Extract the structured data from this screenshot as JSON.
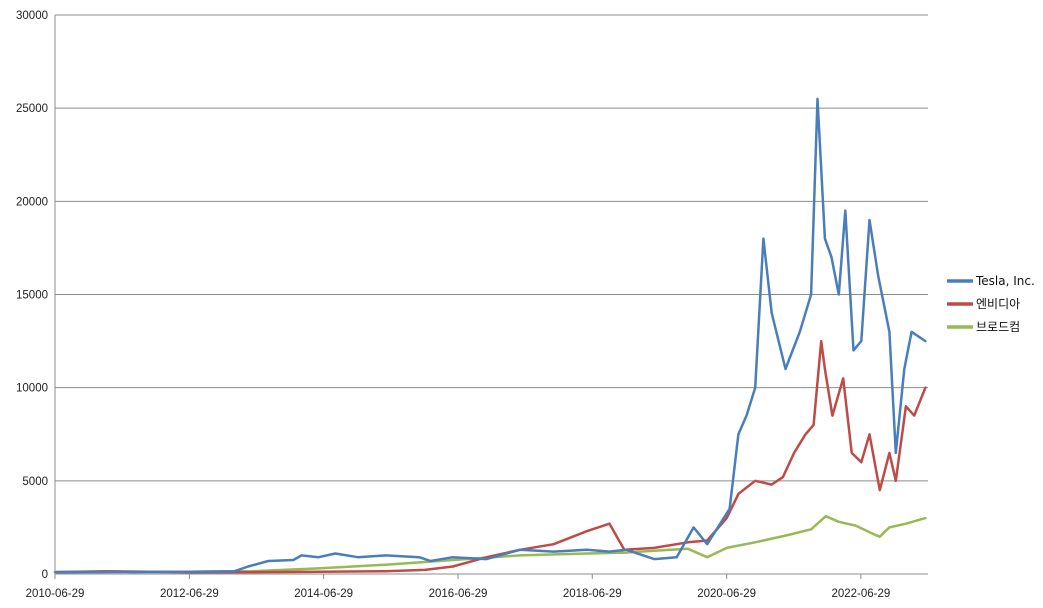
{
  "chart_data": {
    "type": "line",
    "title": "",
    "xlabel": "",
    "ylabel": "",
    "ylim": [
      0,
      30000
    ],
    "y_ticks": [
      0,
      5000,
      10000,
      15000,
      20000,
      25000,
      30000
    ],
    "xlim": [
      "2010-06-29",
      "2023-06-29"
    ],
    "x_ticks": [
      "2010-06-29",
      "2012-06-29",
      "2014-06-29",
      "2016-06-29",
      "2018-06-29",
      "2020-06-29",
      "2022-06-29"
    ],
    "grid": "horizontal",
    "legend_position": "right",
    "series": [
      {
        "name": "Tesla, Inc.",
        "color": "#4a7ebb",
        "points": [
          [
            "2010-06-29",
            100
          ],
          [
            "2012-06-29",
            120
          ],
          [
            "2013-03-01",
            150
          ],
          [
            "2013-05-15",
            400
          ],
          [
            "2013-09-01",
            700
          ],
          [
            "2014-01-15",
            750
          ],
          [
            "2014-03-01",
            1000
          ],
          [
            "2014-06-01",
            900
          ],
          [
            "2014-09-01",
            1100
          ],
          [
            "2015-01-01",
            900
          ],
          [
            "2015-06-01",
            1000
          ],
          [
            "2015-12-01",
            900
          ],
          [
            "2016-02-01",
            700
          ],
          [
            "2016-06-01",
            900
          ],
          [
            "2016-12-01",
            800
          ],
          [
            "2017-06-01",
            1300
          ],
          [
            "2017-12-01",
            1200
          ],
          [
            "2018-06-01",
            1300
          ],
          [
            "2018-10-01",
            1200
          ],
          [
            "2019-01-01",
            1300
          ],
          [
            "2019-06-01",
            800
          ],
          [
            "2019-10-01",
            900
          ],
          [
            "2020-01-01",
            2500
          ],
          [
            "2020-03-15",
            1600
          ],
          [
            "2020-07-15",
            3500
          ],
          [
            "2020-09-01",
            7500
          ],
          [
            "2020-10-15",
            8500
          ],
          [
            "2020-12-01",
            10000
          ],
          [
            "2021-01-15",
            18000
          ],
          [
            "2021-03-01",
            14000
          ],
          [
            "2021-05-15",
            11000
          ],
          [
            "2021-08-01",
            13000
          ],
          [
            "2021-10-01",
            15000
          ],
          [
            "2021-11-05",
            25500
          ],
          [
            "2021-12-15",
            18000
          ],
          [
            "2022-01-20",
            17000
          ],
          [
            "2022-03-01",
            15000
          ],
          [
            "2022-04-05",
            19500
          ],
          [
            "2022-05-20",
            12000
          ],
          [
            "2022-07-01",
            12500
          ],
          [
            "2022-08-15",
            19000
          ],
          [
            "2022-10-01",
            16000
          ],
          [
            "2022-12-01",
            13000
          ],
          [
            "2023-01-05",
            6500
          ],
          [
            "2023-02-20",
            11000
          ],
          [
            "2023-04-01",
            13000
          ],
          [
            "2023-06-15",
            12500
          ]
        ]
      },
      {
        "name": "엔비디아",
        "color": "#be4b48",
        "points": [
          [
            "2010-06-29",
            100
          ],
          [
            "2011-04-01",
            150
          ],
          [
            "2012-06-29",
            90
          ],
          [
            "2013-06-01",
            100
          ],
          [
            "2014-06-01",
            120
          ],
          [
            "2015-06-01",
            150
          ],
          [
            "2016-01-01",
            220
          ],
          [
            "2016-06-01",
            400
          ],
          [
            "2016-12-01",
            900
          ],
          [
            "2017-06-01",
            1300
          ],
          [
            "2017-12-01",
            1600
          ],
          [
            "2018-06-01",
            2300
          ],
          [
            "2018-10-01",
            2700
          ],
          [
            "2018-12-20",
            1300
          ],
          [
            "2019-06-01",
            1400
          ],
          [
            "2019-12-01",
            1700
          ],
          [
            "2020-03-15",
            1800
          ],
          [
            "2020-06-29",
            3000
          ],
          [
            "2020-09-01",
            4300
          ],
          [
            "2020-12-01",
            5000
          ],
          [
            "2021-03-01",
            4800
          ],
          [
            "2021-05-01",
            5200
          ],
          [
            "2021-07-01",
            6500
          ],
          [
            "2021-09-01",
            7500
          ],
          [
            "2021-10-15",
            8000
          ],
          [
            "2021-11-25",
            12500
          ],
          [
            "2021-12-15",
            11000
          ],
          [
            "2022-01-25",
            8500
          ],
          [
            "2022-03-25",
            10500
          ],
          [
            "2022-05-10",
            6500
          ],
          [
            "2022-07-01",
            6000
          ],
          [
            "2022-08-15",
            7500
          ],
          [
            "2022-10-10",
            4500
          ],
          [
            "2022-12-01",
            6500
          ],
          [
            "2023-01-05",
            5000
          ],
          [
            "2023-03-01",
            9000
          ],
          [
            "2023-04-15",
            8500
          ],
          [
            "2023-06-15",
            10000
          ]
        ]
      },
      {
        "name": "브로드컴",
        "color": "#98b954",
        "points": [
          [
            "2010-06-29",
            100
          ],
          [
            "2012-06-29",
            120
          ],
          [
            "2013-06-01",
            150
          ],
          [
            "2014-06-01",
            300
          ],
          [
            "2015-06-01",
            500
          ],
          [
            "2016-06-01",
            750
          ],
          [
            "2017-06-01",
            1000
          ],
          [
            "2018-06-01",
            1100
          ],
          [
            "2019-01-01",
            1150
          ],
          [
            "2019-06-01",
            1250
          ],
          [
            "2019-12-01",
            1350
          ],
          [
            "2020-03-15",
            900
          ],
          [
            "2020-06-29",
            1400
          ],
          [
            "2020-12-01",
            1700
          ],
          [
            "2021-06-01",
            2100
          ],
          [
            "2021-10-01",
            2400
          ],
          [
            "2021-12-20",
            3100
          ],
          [
            "2022-03-01",
            2800
          ],
          [
            "2022-06-01",
            2600
          ],
          [
            "2022-09-15",
            2100
          ],
          [
            "2022-10-10",
            2000
          ],
          [
            "2022-12-01",
            2500
          ],
          [
            "2023-03-01",
            2700
          ],
          [
            "2023-06-15",
            3000
          ]
        ]
      }
    ]
  }
}
